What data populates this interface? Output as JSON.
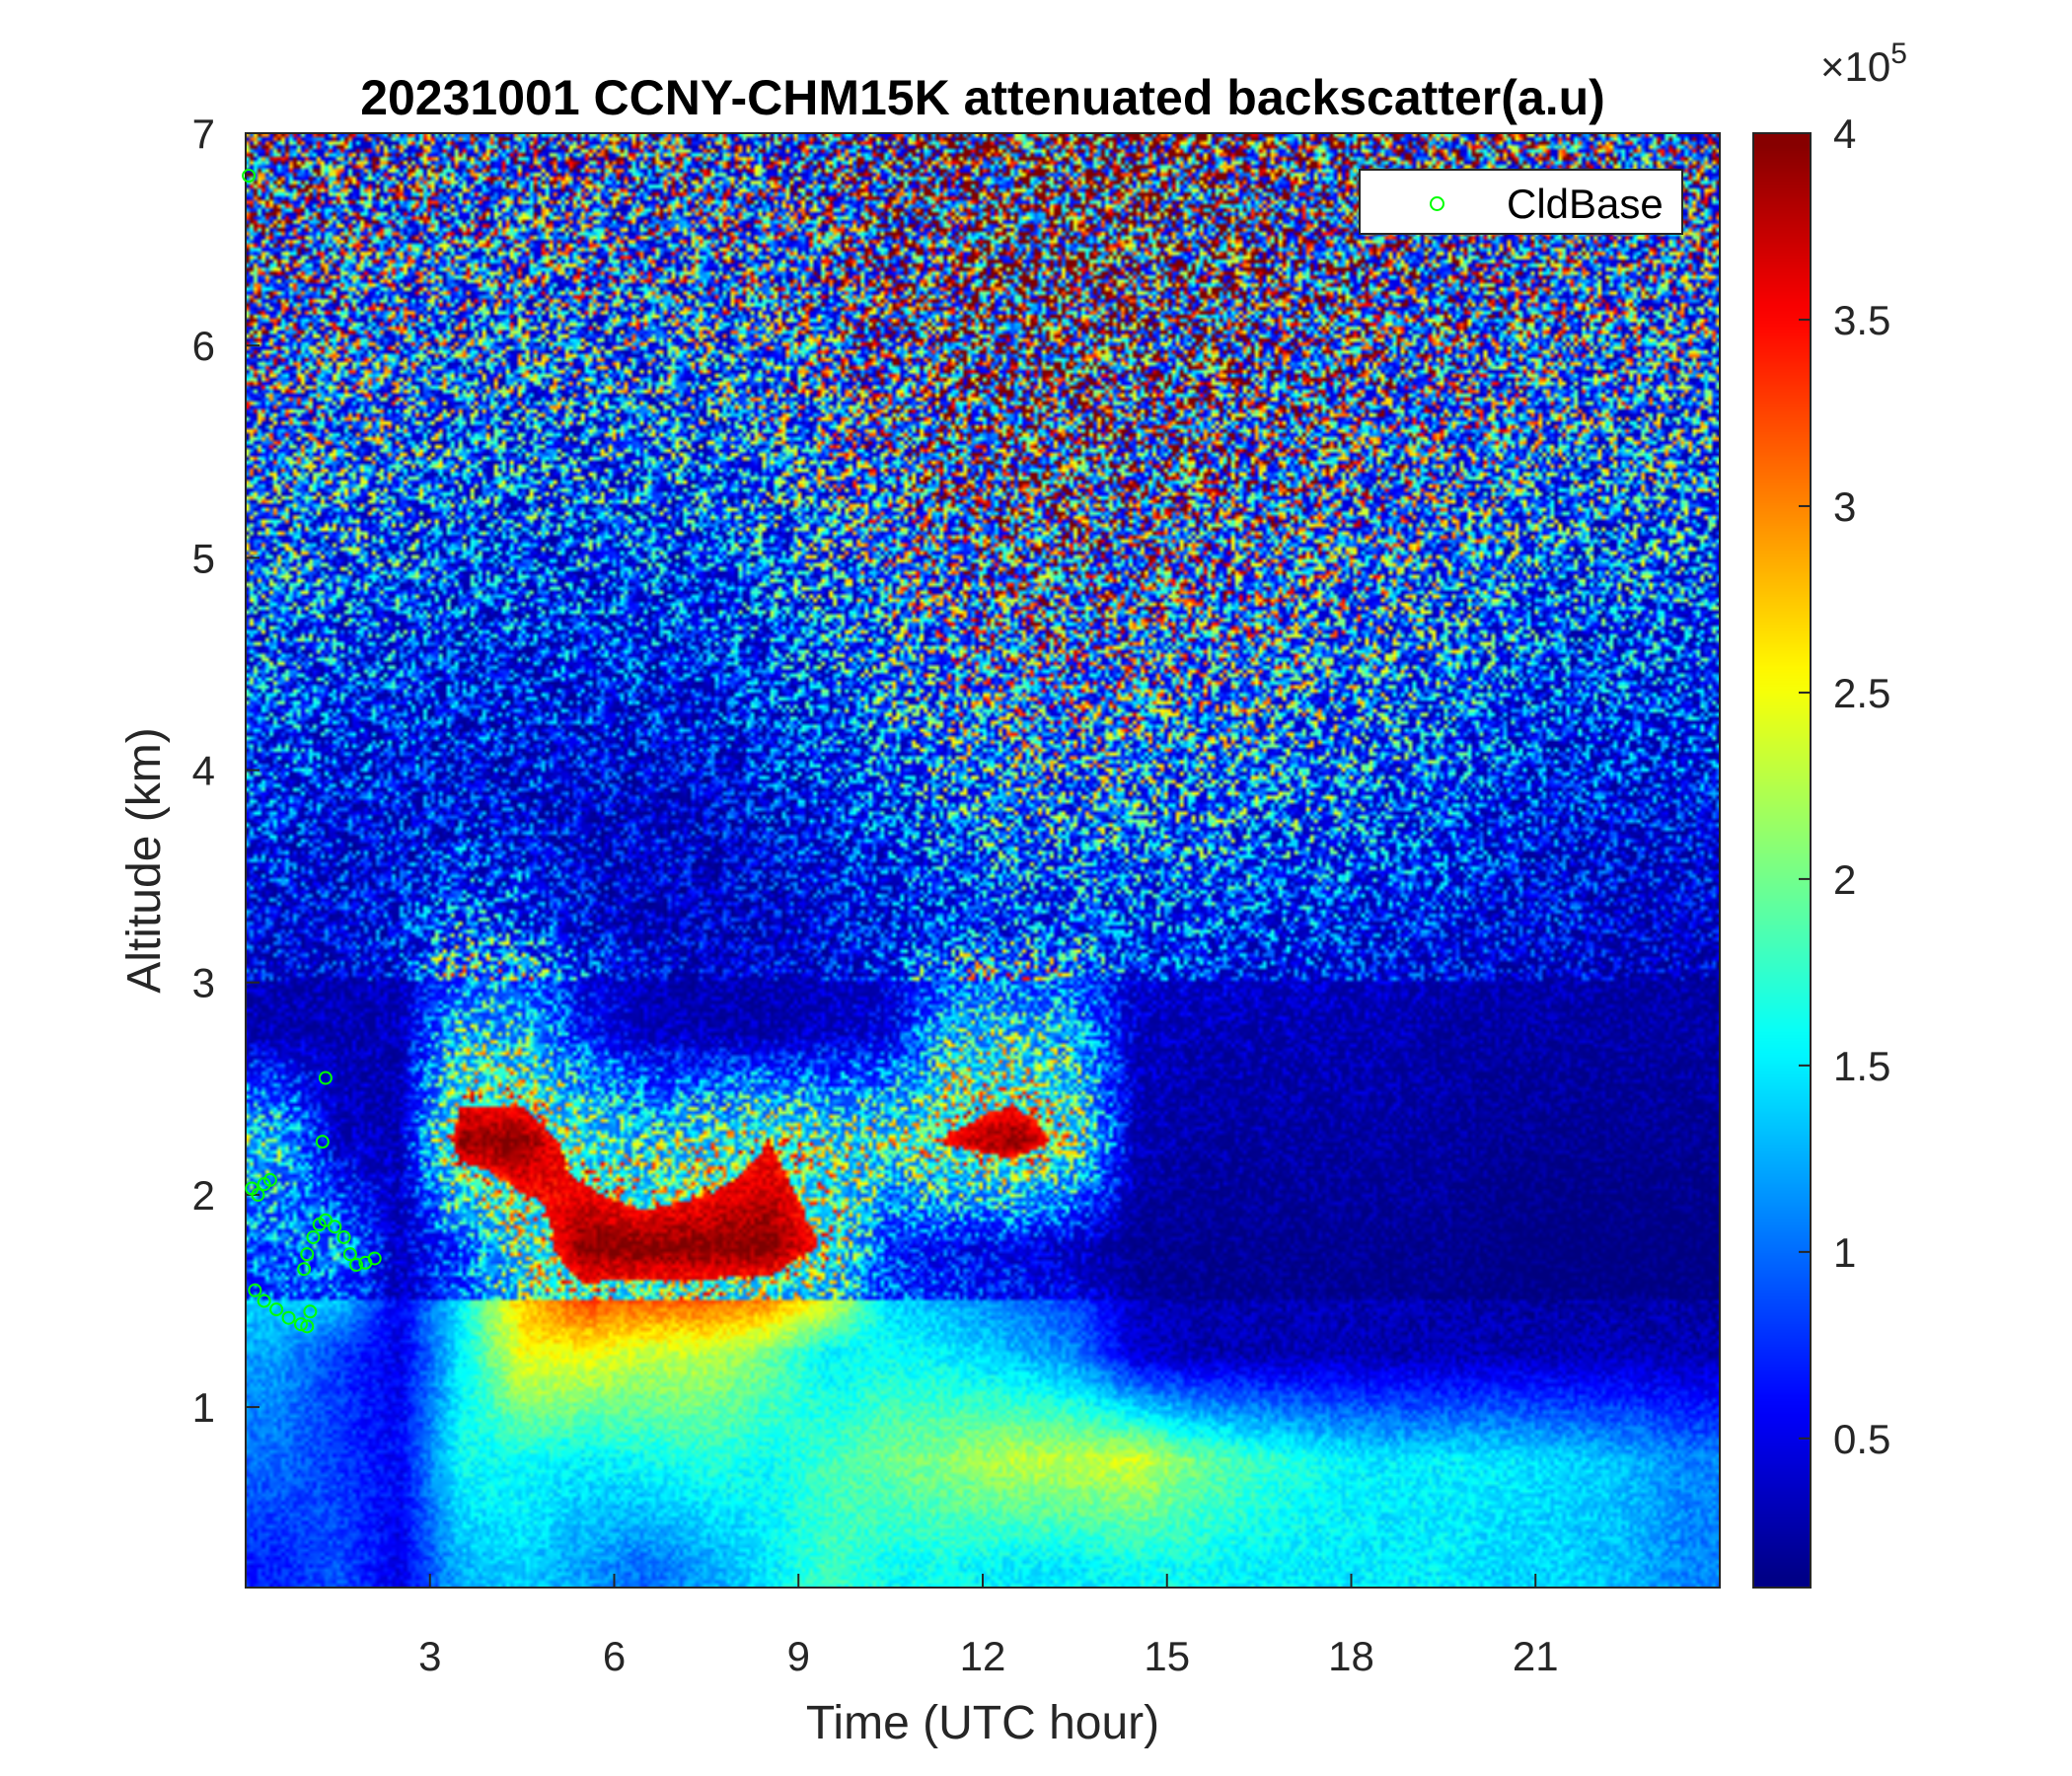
{
  "chart_data": {
    "type": "heatmap",
    "title": "20231001 CCNY-CHM15K attenuated backscatter(a.u)",
    "xlabel": "Time (UTC hour)",
    "ylabel": "Altitude (km)",
    "xlim": [
      0,
      24
    ],
    "ylim": [
      0.15,
      7
    ],
    "xticks": [
      3,
      6,
      9,
      12,
      15,
      18,
      21
    ],
    "yticks": [
      1,
      2,
      3,
      4,
      5,
      6,
      7
    ],
    "colorbar": {
      "colormap": "jet",
      "clim": [
        0.1,
        4
      ],
      "ticks": [
        0.5,
        1,
        1.5,
        2,
        2.5,
        3,
        3.5,
        4
      ],
      "multiplier": "×10",
      "exponent": "5"
    },
    "grid_hours": [
      0.5,
      1.5,
      2.5,
      3.5,
      4.5,
      5.5,
      6.5,
      7.5,
      8.5,
      9.5,
      10.5,
      11.5,
      12.5,
      13.5,
      14.5,
      15.5,
      16.5,
      17.5,
      18.5,
      19.5,
      20.5,
      21.5,
      22.5,
      23.5
    ],
    "grid_altitudes_km": [
      6.75,
      6.25,
      5.75,
      5.25,
      4.75,
      4.25,
      3.75,
      3.25,
      2.75,
      2.25,
      1.75,
      1.25,
      0.75,
      0.25
    ],
    "mean_backscatter_1e5": [
      [
        1.3,
        1.0,
        1.0,
        1.0,
        1.0,
        1.0,
        1.0,
        1.0,
        1.0,
        1.1,
        1.3,
        1.6,
        1.8,
        1.8,
        1.7,
        1.6,
        1.5,
        1.4,
        1.3,
        1.2,
        1.1,
        1.1,
        1.0,
        1.0
      ],
      [
        1.1,
        1.0,
        0.9,
        0.9,
        0.9,
        0.9,
        0.9,
        0.9,
        1.0,
        1.1,
        1.3,
        1.6,
        1.8,
        1.8,
        1.7,
        1.6,
        1.5,
        1.4,
        1.3,
        1.2,
        1.1,
        1.0,
        1.0,
        0.9
      ],
      [
        1.0,
        0.9,
        0.9,
        0.8,
        0.8,
        0.8,
        0.8,
        0.8,
        0.9,
        1.0,
        1.2,
        1.5,
        1.7,
        1.7,
        1.6,
        1.5,
        1.4,
        1.3,
        1.2,
        1.1,
        1.0,
        0.9,
        0.9,
        0.8
      ],
      [
        0.9,
        0.8,
        0.8,
        0.7,
        0.7,
        0.7,
        0.7,
        0.7,
        0.8,
        0.9,
        1.1,
        1.4,
        1.6,
        1.6,
        1.5,
        1.4,
        1.3,
        1.2,
        1.1,
        1.0,
        0.9,
        0.8,
        0.8,
        0.8
      ],
      [
        0.8,
        0.7,
        0.7,
        0.6,
        0.6,
        0.6,
        0.6,
        0.6,
        0.7,
        0.8,
        1.0,
        1.2,
        1.4,
        1.4,
        1.3,
        1.3,
        1.2,
        1.1,
        1.0,
        0.9,
        0.8,
        0.7,
        0.7,
        0.7
      ],
      [
        0.7,
        0.6,
        0.6,
        0.5,
        0.5,
        0.5,
        0.5,
        0.5,
        0.6,
        0.7,
        0.9,
        1.1,
        1.2,
        1.2,
        1.2,
        1.1,
        1.1,
        1.0,
        0.9,
        0.8,
        0.7,
        0.6,
        0.6,
        0.6
      ],
      [
        0.6,
        0.5,
        0.5,
        0.5,
        0.5,
        0.4,
        0.4,
        0.4,
        0.5,
        0.6,
        0.7,
        0.9,
        1.0,
        1.0,
        1.0,
        1.0,
        0.9,
        0.9,
        0.8,
        0.7,
        0.6,
        0.5,
        0.5,
        0.5
      ],
      [
        0.5,
        0.5,
        0.6,
        1.0,
        0.8,
        0.5,
        0.4,
        0.4,
        0.4,
        0.5,
        0.6,
        0.7,
        0.8,
        0.8,
        0.8,
        0.8,
        0.7,
        0.7,
        0.6,
        0.6,
        0.5,
        0.5,
        0.4,
        0.4
      ],
      [
        0.5,
        0.5,
        0.5,
        2.5,
        2.5,
        1.2,
        0.6,
        0.5,
        0.5,
        0.6,
        0.8,
        2.5,
        2.6,
        2.2,
        0.6,
        0.5,
        0.5,
        0.5,
        0.5,
        0.4,
        0.4,
        0.4,
        0.4,
        0.4
      ],
      [
        2.5,
        0.6,
        0.5,
        4.0,
        4.0,
        3.2,
        2.6,
        3.0,
        3.5,
        3.0,
        3.0,
        3.6,
        4.0,
        3.2,
        0.5,
        0.4,
        0.4,
        0.4,
        0.4,
        0.4,
        0.3,
        0.3,
        0.3,
        0.3
      ],
      [
        1.6,
        2.0,
        0.6,
        1.5,
        3.0,
        4.0,
        4.0,
        4.0,
        4.0,
        3.4,
        1.2,
        1.0,
        0.8,
        0.6,
        0.3,
        0.3,
        0.3,
        0.3,
        0.3,
        0.3,
        0.2,
        0.2,
        0.2,
        0.2
      ],
      [
        1.2,
        0.8,
        0.5,
        1.5,
        2.5,
        2.5,
        2.3,
        2.3,
        2.0,
        1.5,
        1.6,
        1.5,
        1.3,
        1.1,
        0.4,
        0.3,
        0.3,
        0.3,
        0.3,
        0.3,
        0.3,
        0.3,
        0.3,
        0.3
      ],
      [
        1.0,
        0.8,
        0.6,
        1.6,
        1.6,
        1.5,
        1.6,
        1.7,
        1.6,
        1.8,
        2.0,
        2.1,
        2.3,
        2.3,
        2.4,
        2.0,
        1.8,
        1.6,
        1.5,
        1.5,
        1.5,
        1.4,
        1.3,
        1.1
      ],
      [
        0.7,
        0.9,
        0.5,
        1.3,
        1.4,
        1.2,
        1.0,
        1.2,
        1.5,
        1.8,
        1.6,
        1.6,
        1.5,
        1.5,
        1.6,
        1.6,
        1.5,
        1.5,
        1.5,
        1.5,
        1.4,
        1.4,
        1.3,
        1.1
      ]
    ],
    "series": [
      {
        "name": "CldBase",
        "type": "scatter",
        "marker": "circle",
        "color": "#00ff00",
        "points": [
          [
            0.05,
            6.8
          ],
          [
            0.1,
            2.03
          ],
          [
            0.2,
            2.0
          ],
          [
            0.3,
            2.05
          ],
          [
            0.4,
            2.07
          ],
          [
            0.15,
            1.55
          ],
          [
            0.3,
            1.5
          ],
          [
            0.5,
            1.46
          ],
          [
            0.7,
            1.42
          ],
          [
            0.9,
            1.39
          ],
          [
            1.0,
            1.38
          ],
          [
            1.05,
            1.45
          ],
          [
            0.95,
            1.65
          ],
          [
            1.0,
            1.72
          ],
          [
            1.1,
            1.8
          ],
          [
            1.2,
            1.86
          ],
          [
            1.3,
            1.88
          ],
          [
            1.45,
            1.85
          ],
          [
            1.6,
            1.8
          ],
          [
            1.7,
            1.72
          ],
          [
            1.8,
            1.67
          ],
          [
            1.95,
            1.68
          ],
          [
            2.1,
            1.7
          ],
          [
            1.25,
            2.25
          ],
          [
            1.3,
            2.55
          ]
        ]
      }
    ],
    "legend": {
      "location": "top-right",
      "entries": [
        "CldBase"
      ]
    }
  }
}
